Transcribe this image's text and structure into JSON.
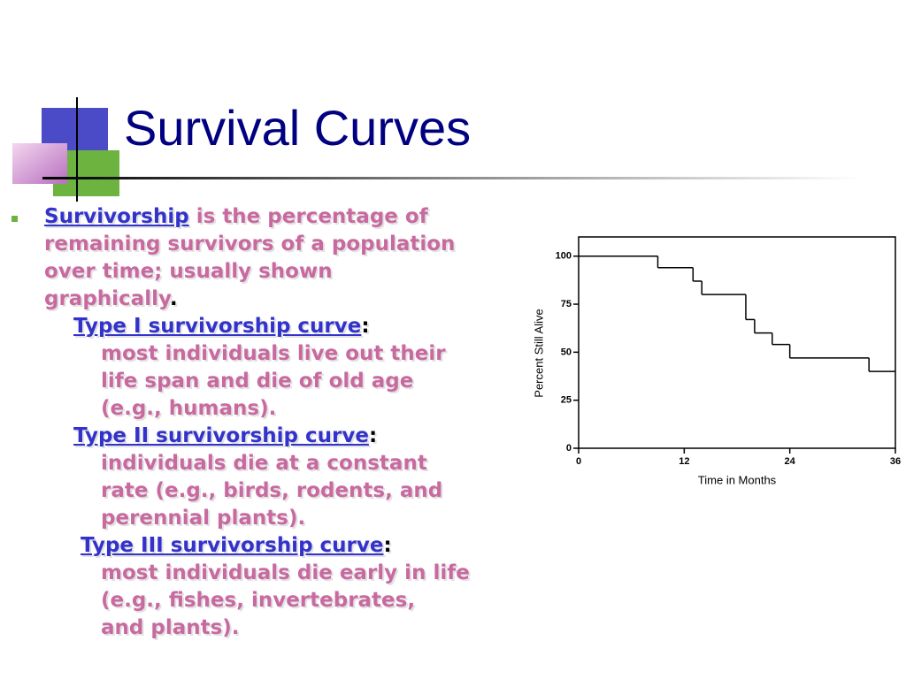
{
  "title": "Survival Curves",
  "body": {
    "intro": {
      "term": "Survivorship",
      "lines": [
        "is the percentage of",
        "remaining survivors of a population",
        "over time; usually shown",
        "graphically"
      ],
      "end": "."
    },
    "types": [
      {
        "heading": "Type I survivorship curve",
        "separator": ":",
        "lines": [
          "most individuals live out their",
          "life span and die of old age",
          "(e.g., humans)."
        ]
      },
      {
        "heading": "Type II survivorship curve",
        "separator": ":",
        "lines": [
          "individuals die at a constant",
          "rate (e.g., birds, rodents, and",
          "perennial plants)."
        ]
      },
      {
        "heading": "Type III survivorship curve",
        "separator": ":",
        "lines": [
          "most individuals die early in life",
          "(e.g., fishes, invertebrates,",
          "and plants)."
        ]
      }
    ]
  },
  "chart_data": {
    "type": "step",
    "x_label": "Time in Months",
    "y_label": "Percent Still Alive",
    "x": [
      0,
      9,
      13,
      14,
      19,
      20,
      22,
      24,
      33,
      36
    ],
    "values": [
      100,
      94,
      87,
      80,
      67,
      60,
      54,
      47,
      40,
      40
    ],
    "color": "#000000",
    "xlim": [
      0,
      36
    ],
    "xticks": [
      0,
      12,
      24,
      36
    ],
    "ylim": [
      0,
      110
    ],
    "yticks": [
      0,
      25,
      50,
      75,
      100
    ]
  }
}
